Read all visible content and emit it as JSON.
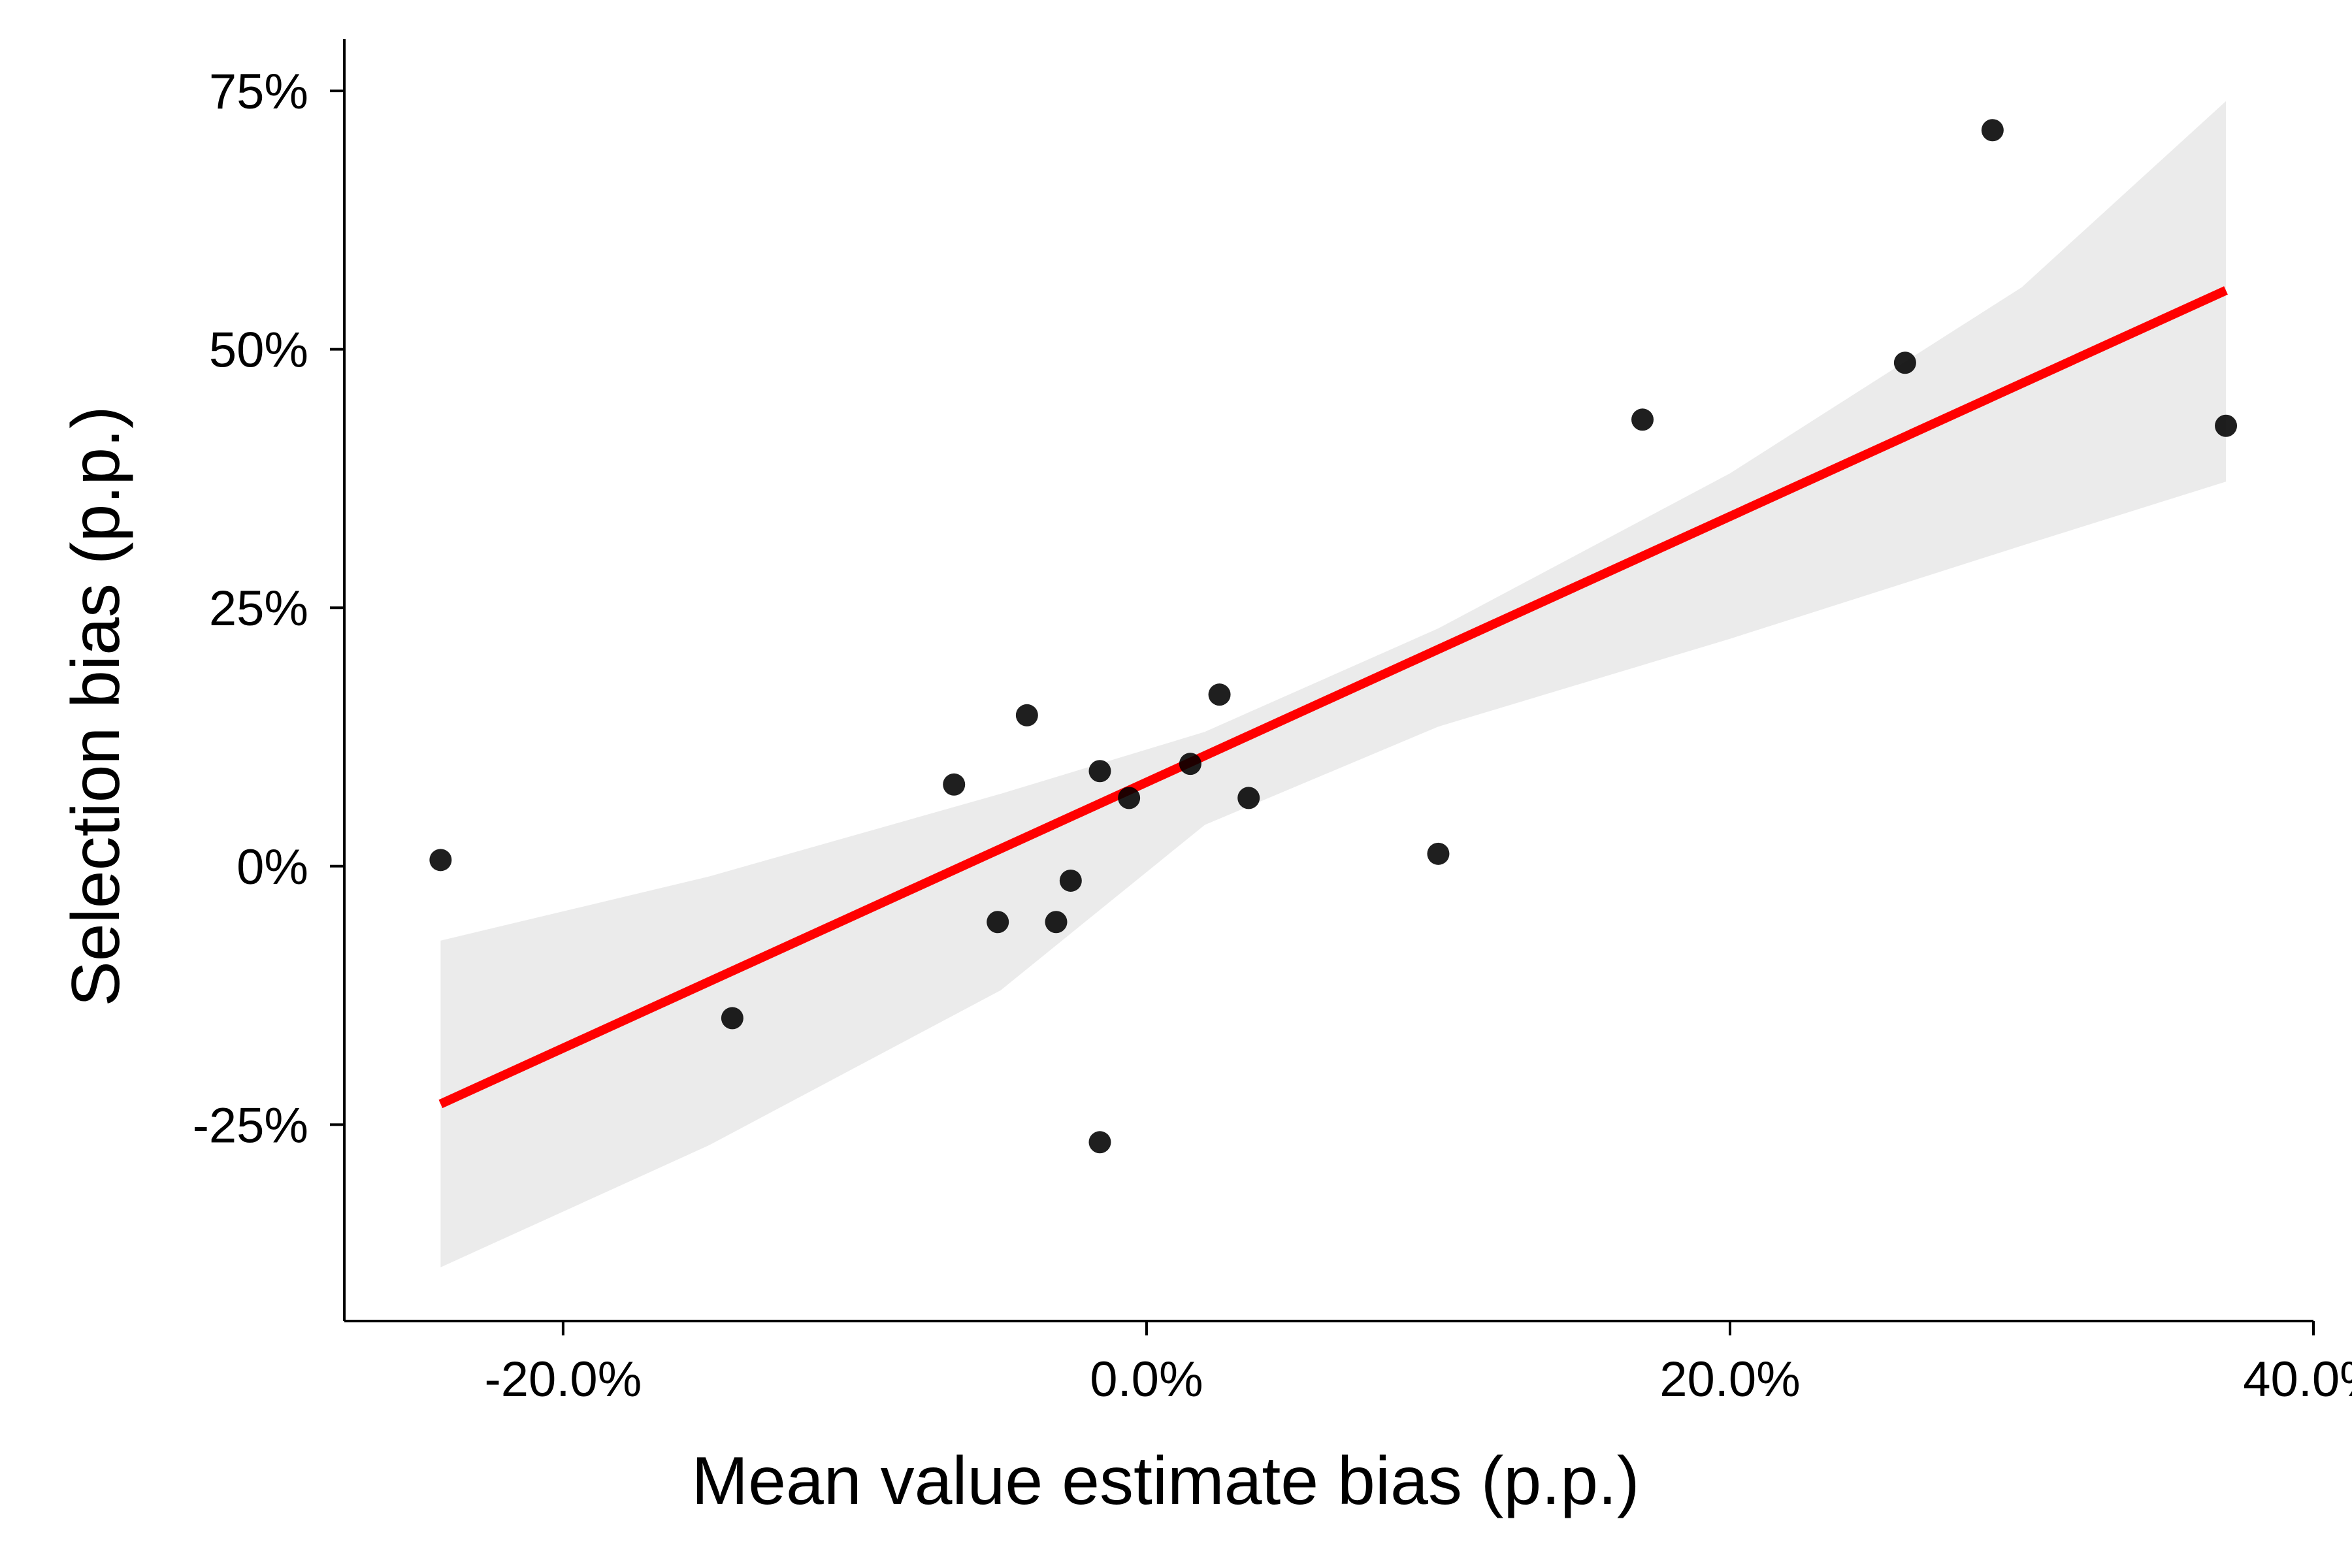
{
  "chart_data": {
    "type": "scatter",
    "title": "",
    "xlabel": "Mean value estimate bias (p.p.)",
    "ylabel": "Selection bias (p.p.)",
    "xlim": [
      -0.275,
      0.4
    ],
    "ylim": [
      -0.44,
      0.8
    ],
    "x_ticks": [
      {
        "value": -0.2,
        "label": "-20.0%"
      },
      {
        "value": 0.0,
        "label": "0.0%"
      },
      {
        "value": 0.2,
        "label": "20.0%"
      },
      {
        "value": 0.4,
        "label": "40.0%"
      }
    ],
    "y_ticks": [
      {
        "value": -0.25,
        "label": "-25%"
      },
      {
        "value": 0.0,
        "label": "0%"
      },
      {
        "value": 0.25,
        "label": "25%"
      },
      {
        "value": 0.5,
        "label": "50%"
      },
      {
        "value": 0.75,
        "label": "75%"
      }
    ],
    "grid": false,
    "legend": "none",
    "points": [
      {
        "x": -0.242,
        "y": 0.006
      },
      {
        "x": -0.142,
        "y": -0.147
      },
      {
        "x": -0.066,
        "y": 0.079
      },
      {
        "x": -0.051,
        "y": -0.054
      },
      {
        "x": -0.041,
        "y": 0.146
      },
      {
        "x": -0.031,
        "y": -0.054
      },
      {
        "x": -0.026,
        "y": -0.014
      },
      {
        "x": -0.016,
        "y": 0.092
      },
      {
        "x": -0.016,
        "y": -0.267
      },
      {
        "x": -0.006,
        "y": 0.066
      },
      {
        "x": 0.015,
        "y": 0.099
      },
      {
        "x": 0.025,
        "y": 0.166
      },
      {
        "x": 0.035,
        "y": 0.066
      },
      {
        "x": 0.1,
        "y": 0.012
      },
      {
        "x": 0.17,
        "y": 0.432
      },
      {
        "x": 0.26,
        "y": 0.487
      },
      {
        "x": 0.29,
        "y": 0.712
      },
      {
        "x": 0.37,
        "y": 0.426
      }
    ],
    "fit_line": {
      "color": "#ff0000",
      "x": [
        -0.242,
        0.37
      ],
      "y": [
        -0.23,
        0.557
      ]
    },
    "confidence_band": {
      "color": "#ebebeb",
      "x": [
        -0.242,
        -0.15,
        -0.05,
        0.02,
        0.1,
        0.2,
        0.3,
        0.37
      ],
      "upper": [
        -0.072,
        -0.01,
        0.07,
        0.13,
        0.23,
        0.38,
        0.56,
        0.74
      ],
      "lower": [
        -0.388,
        -0.27,
        -0.12,
        0.04,
        0.135,
        0.22,
        0.31,
        0.372
      ]
    },
    "colors": {
      "points": "#000000",
      "axis": "#000000"
    }
  }
}
